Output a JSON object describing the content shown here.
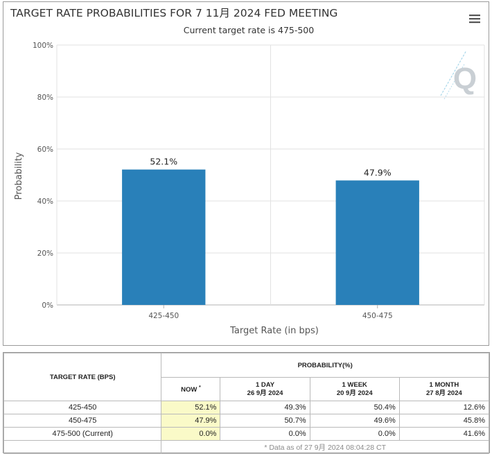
{
  "chart_data": {
    "type": "bar",
    "title": "TARGET RATE PROBABILITIES FOR 7 11月 2024 FED MEETING",
    "subtitle": "Current target rate is 475-500",
    "xlabel": "Target Rate (in bps)",
    "ylabel": "Probability",
    "categories": [
      "425-450",
      "450-475"
    ],
    "values": [
      52.1,
      47.9
    ],
    "data_labels": [
      "52.1%",
      "47.9%"
    ],
    "ylim": [
      0,
      100
    ],
    "yticks": [
      0,
      20,
      40,
      60,
      80,
      100
    ],
    "ytick_labels": [
      "0%",
      "20%",
      "40%",
      "60%",
      "80%",
      "100%"
    ],
    "grid": true,
    "bar_color": "#2980b9"
  },
  "menu_icon": "hamburger-menu-icon",
  "watermark_logo": "Q",
  "table": {
    "rate_header": "TARGET RATE (BPS)",
    "prob_header": "PROBABILITY(%)",
    "now_label": "NOW",
    "now_marker": "*",
    "columns": [
      {
        "label": "1 DAY",
        "date": "26 9月 2024"
      },
      {
        "label": "1 WEEK",
        "date": "20 9月 2024"
      },
      {
        "label": "1 MONTH",
        "date": "27 8月 2024"
      }
    ],
    "rows": [
      {
        "rate": "425-450",
        "now": "52.1%",
        "day": "49.3%",
        "week": "50.4%",
        "month": "12.6%"
      },
      {
        "rate": "450-475",
        "now": "47.9%",
        "day": "50.7%",
        "week": "49.6%",
        "month": "45.8%"
      },
      {
        "rate": "475-500 (Current)",
        "now": "0.0%",
        "day": "0.0%",
        "week": "0.0%",
        "month": "41.6%"
      }
    ],
    "footnote": "* Data as of 27 9月 2024 08:04:28 CT"
  }
}
